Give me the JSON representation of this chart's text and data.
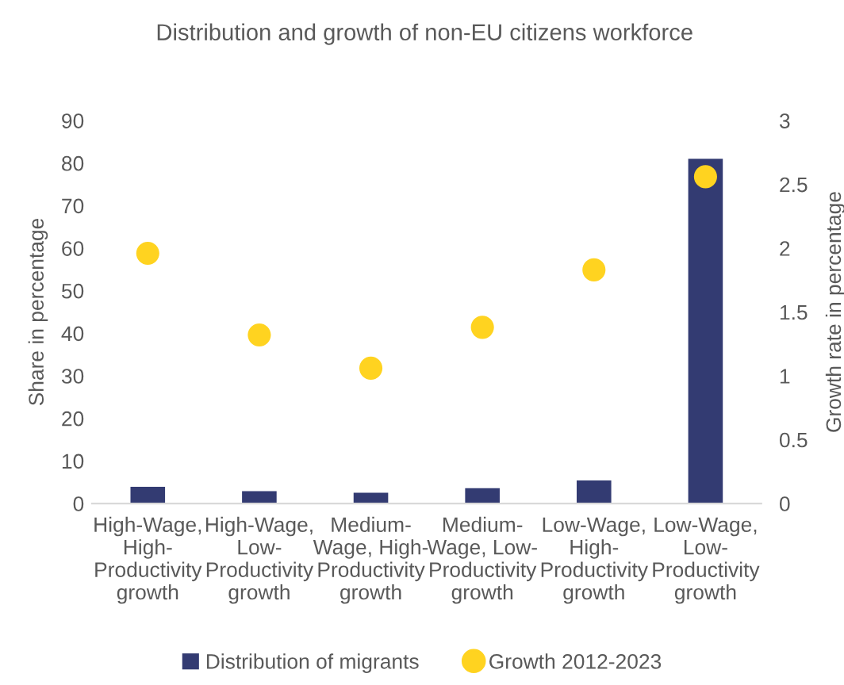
{
  "chart_data": {
    "type": "bar",
    "title": "Distribution and growth of non-EU citizens workforce",
    "categories": [
      "High-Wage,\nHigh-\nProductivity\ngrowth",
      "High-Wage,\nLow-\nProductivity\ngrowth",
      "Medium-\nWage, High-\nProductivity\ngrowth",
      "Medium-\nWage, Low-\nProductivity\ngrowth",
      "Low-Wage,\nHigh-\nProductivity\ngrowth",
      "Low-Wage,\nLow-\nProductivity\ngrowth"
    ],
    "series": [
      {
        "name": "Distribution of migrants",
        "color": "#333b72",
        "values": [
          3.9,
          2.9,
          2.5,
          3.6,
          5.4,
          81
        ]
      },
      {
        "name": "Growth 2012-2023",
        "type": "scatter",
        "axis": "y2",
        "marker": "circle",
        "color": "#ffd320",
        "values": [
          1.96,
          1.32,
          1.06,
          1.38,
          1.83,
          2.56
        ]
      }
    ],
    "ylabel": "Share in percentage",
    "y2label": "Growth rate in percentage",
    "ylim": [
      0,
      90
    ],
    "yticks": [
      0,
      10,
      20,
      30,
      40,
      50,
      60,
      70,
      80,
      90
    ],
    "y2lim": [
      0,
      3
    ],
    "y2ticks": [
      0,
      0.5,
      1,
      1.5,
      2,
      2.5,
      3
    ],
    "grid": false,
    "legend": "bottom"
  }
}
